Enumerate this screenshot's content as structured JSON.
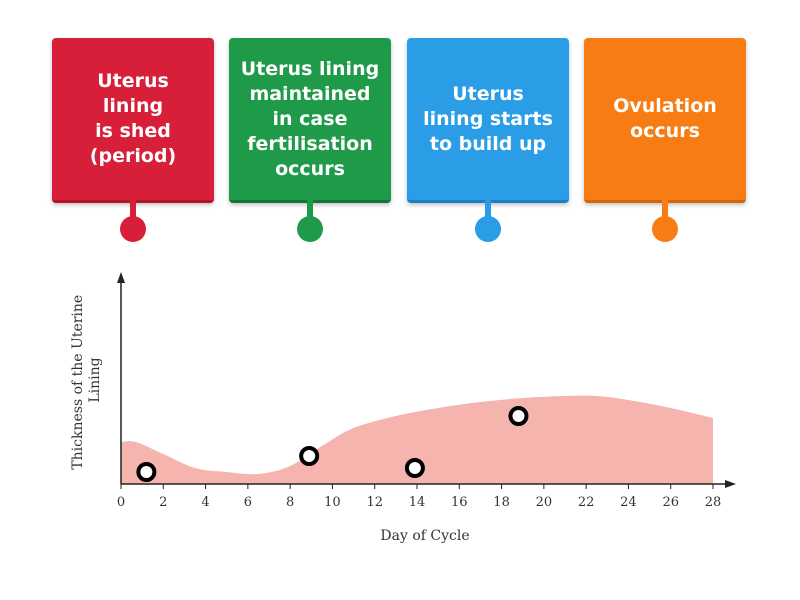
{
  "cards": [
    {
      "label": "Uterus\nlining\nis shed\n(period)",
      "color": "#d81f3a",
      "edge": "#b3142c"
    },
    {
      "label": "Uterus lining\nmaintained\nin case\nfertilisation\noccurs",
      "color": "#1f9a49",
      "edge": "#16743a"
    },
    {
      "label": "Uterus\nlining starts\nto build up",
      "color": "#2b9de6",
      "edge": "#1e7fc0"
    },
    {
      "label": "Ovulation\noccurs",
      "color": "#f67c13",
      "edge": "#d4650a"
    }
  ],
  "chart_data": {
    "type": "area",
    "xlabel": "Day of Cycle",
    "ylabel": "Thickness of the Uterine Lining",
    "x_ticks": [
      0,
      2,
      4,
      6,
      8,
      10,
      12,
      14,
      16,
      18,
      20,
      22,
      24,
      26,
      28
    ],
    "xlim": [
      0,
      28
    ],
    "ylim": [
      0,
      10
    ],
    "fill_color": "#f5b4ad",
    "area_points": [
      {
        "x": 0,
        "y": 2.1
      },
      {
        "x": 0.7,
        "y": 2.1
      },
      {
        "x": 2,
        "y": 1.5
      },
      {
        "x": 3.5,
        "y": 0.8
      },
      {
        "x": 5,
        "y": 0.6
      },
      {
        "x": 6.5,
        "y": 0.5
      },
      {
        "x": 8,
        "y": 0.9
      },
      {
        "x": 9.5,
        "y": 1.9
      },
      {
        "x": 11,
        "y": 2.8
      },
      {
        "x": 13,
        "y": 3.4
      },
      {
        "x": 15,
        "y": 3.8
      },
      {
        "x": 17,
        "y": 4.1
      },
      {
        "x": 19,
        "y": 4.3
      },
      {
        "x": 21,
        "y": 4.4
      },
      {
        "x": 22.5,
        "y": 4.4
      },
      {
        "x": 24,
        "y": 4.2
      },
      {
        "x": 26,
        "y": 3.8
      },
      {
        "x": 28,
        "y": 3.3
      }
    ],
    "drop_targets": [
      {
        "x": 1.2,
        "y": 0.6
      },
      {
        "x": 8.9,
        "y": 1.4
      },
      {
        "x": 13.9,
        "y": 0.8
      },
      {
        "x": 18.8,
        "y": 3.4
      }
    ]
  }
}
